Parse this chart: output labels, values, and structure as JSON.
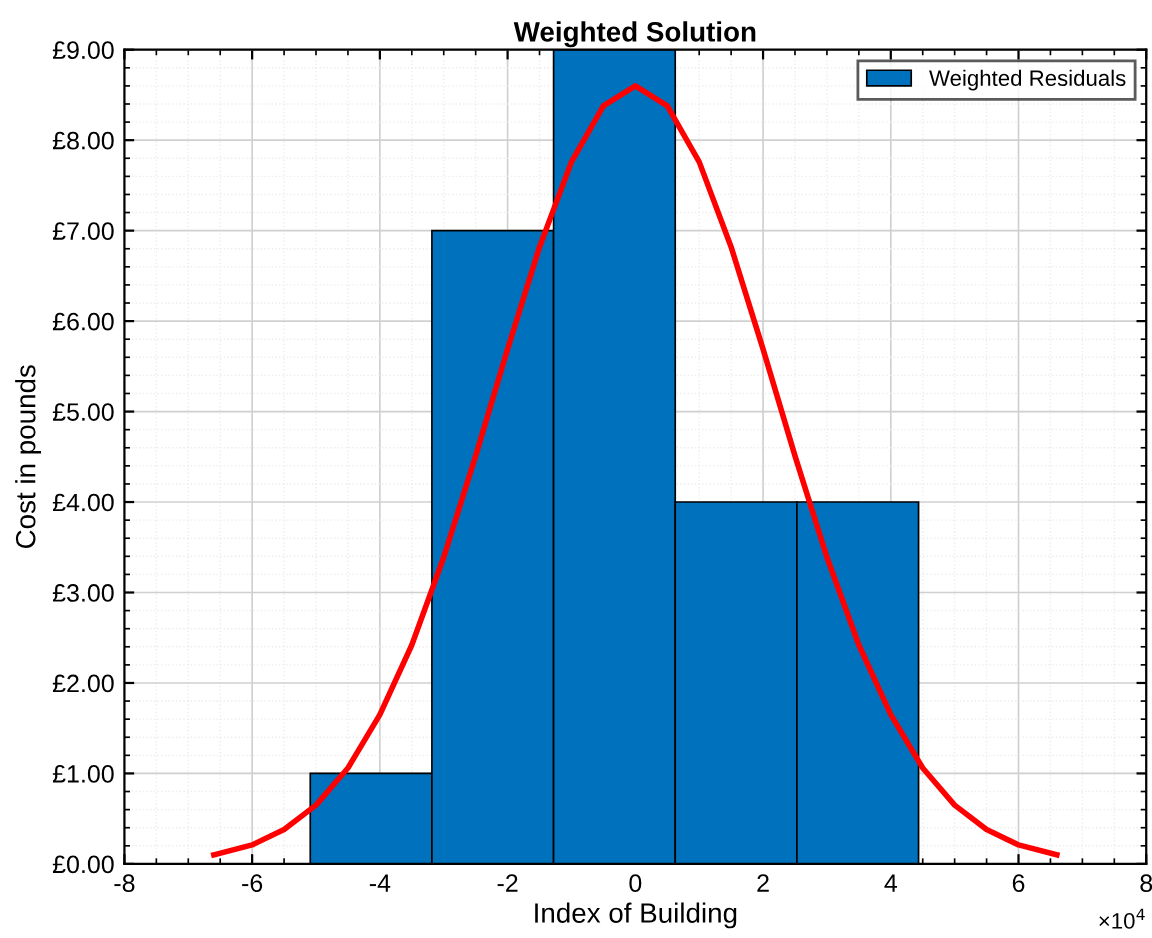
{
  "chart_data": {
    "type": "histogram",
    "title": "Weighted Solution",
    "xlabel": "Index of Building",
    "ylabel": "Cost in pounds",
    "annotations": [
      "×10$^{4}$"
    ],
    "series": [
      {
        "name": "Weighted Residuals",
        "color": "#0072bd",
        "bins": [
          -5.09,
          -3.185,
          -1.28,
          0.625,
          2.53,
          4.435
        ],
        "values": [
          1,
          7,
          9,
          4,
          4
        ]
      },
      {
        "type": "line",
        "color": "#ff0000",
        "x": [
          -6.6,
          -6,
          -5.5,
          -5,
          -4.5,
          -4,
          -3.5,
          -3,
          -2.5,
          -2,
          -1.5,
          -1,
          -0.5,
          0,
          0.5,
          1,
          1.5,
          2,
          2.5,
          3,
          3.5,
          4,
          4.5,
          5,
          5.5,
          6,
          6.6
        ],
        "values": [
          0.1,
          0.21,
          0.38,
          0.65,
          1.06,
          1.65,
          2.42,
          3.39,
          4.51,
          5.69,
          6.82,
          7.76,
          8.38,
          8.6,
          8.38,
          7.76,
          6.82,
          5.69,
          4.51,
          3.39,
          2.42,
          1.65,
          1.06,
          0.65,
          0.38,
          0.21,
          0.1
        ]
      }
    ],
    "xlim": [
      -8,
      8
    ],
    "xticks": [
      -8,
      -6,
      -4,
      -2,
      0,
      2,
      4,
      6,
      8
    ],
    "ylim": [
      0,
      9
    ],
    "yticks": [
      {
        "value": 0,
        "label": "£0.00"
      },
      {
        "value": 1,
        "label": "£1.00"
      },
      {
        "value": 2,
        "label": "£2.00"
      },
      {
        "value": 3,
        "label": "£3.00"
      },
      {
        "value": 4,
        "label": "£4.00"
      },
      {
        "value": 5,
        "label": "£5.00"
      },
      {
        "value": 6,
        "label": "£6.00"
      },
      {
        "value": 7,
        "label": "£7.00"
      },
      {
        "value": 8,
        "label": "£8.00"
      },
      {
        "value": 9,
        "label": "£9.00"
      }
    ],
    "grid": true,
    "legend": "top right"
  }
}
